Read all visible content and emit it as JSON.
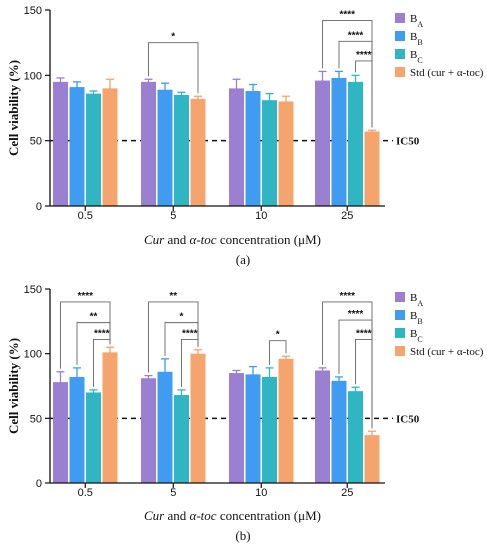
{
  "chart_data": [
    {
      "type": "bar",
      "panel_label": "(a)",
      "ylabel": "Cell viability (%)",
      "xlabel": {
        "italic1": "Cur",
        "mid": " and ",
        "italic2": "α-toc",
        "rest": " concentration (μM)"
      },
      "ylim": [
        0,
        150
      ],
      "yticks": [
        "0",
        "50",
        "100",
        "150"
      ],
      "categories": [
        "0.5",
        "5",
        "10",
        "25"
      ],
      "ic50": {
        "value": 50,
        "label": "IC50"
      },
      "series": [
        {
          "name": "BA",
          "legend_main": "B",
          "legend_sub": "A",
          "color": "#9b7fd0",
          "values": [
            95,
            95,
            90,
            96
          ],
          "errors": [
            3,
            2,
            7,
            7
          ]
        },
        {
          "name": "BB",
          "legend_main": "B",
          "legend_sub": "B",
          "color": "#3f9cf1",
          "values": [
            91,
            89,
            88,
            98
          ],
          "errors": [
            4,
            5,
            5,
            5
          ]
        },
        {
          "name": "BC",
          "legend_main": "B",
          "legend_sub": "C",
          "color": "#2fb6c2",
          "values": [
            86,
            85,
            81,
            95
          ],
          "errors": [
            2,
            2,
            5,
            5
          ]
        },
        {
          "name": "Std (cur + α-toc)",
          "legend_main": "Std (cur + α-toc)",
          "legend_sub": "",
          "color": "#f4a46c",
          "values": [
            90,
            82,
            80,
            57
          ],
          "errors": [
            7,
            2,
            4,
            1
          ]
        }
      ],
      "significance": [
        {
          "cat": 1,
          "from": 0,
          "to": 3,
          "label": "*",
          "level": 125
        },
        {
          "cat": 3,
          "from": 0,
          "to": 3,
          "label": "****",
          "level": 142
        },
        {
          "cat": 3,
          "from": 1,
          "to": 3,
          "label": "****",
          "level": 126
        },
        {
          "cat": 3,
          "from": 2,
          "to": 3,
          "label": "****",
          "level": 111
        }
      ]
    },
    {
      "type": "bar",
      "panel_label": "(b)",
      "ylabel": "Cell viability (%)",
      "xlabel": {
        "italic1": "Cur",
        "mid": " and ",
        "italic2": "α-toc",
        "rest": " concentration (μM)"
      },
      "ylim": [
        0,
        150
      ],
      "yticks": [
        "0",
        "50",
        "100",
        "150"
      ],
      "categories": [
        "0.5",
        "5",
        "10",
        "25"
      ],
      "ic50": {
        "value": 50,
        "label": "IC50"
      },
      "series": [
        {
          "name": "BA",
          "legend_main": "B",
          "legend_sub": "A",
          "color": "#9b7fd0",
          "values": [
            78,
            81,
            85,
            87
          ],
          "errors": [
            8,
            2,
            2,
            2
          ]
        },
        {
          "name": "BB",
          "legend_main": "B",
          "legend_sub": "B",
          "color": "#3f9cf1",
          "values": [
            82,
            86,
            84,
            79
          ],
          "errors": [
            7,
            10,
            6,
            3
          ]
        },
        {
          "name": "BC",
          "legend_main": "B",
          "legend_sub": "C",
          "color": "#2fb6c2",
          "values": [
            70,
            68,
            82,
            71
          ],
          "errors": [
            2,
            4,
            7,
            3
          ]
        },
        {
          "name": "Std (cur + α-toc)",
          "legend_main": "Std (cur + α-toc)",
          "legend_sub": "",
          "color": "#f4a46c",
          "values": [
            101,
            100,
            96,
            37
          ],
          "errors": [
            4,
            3,
            2,
            3
          ]
        }
      ],
      "significance": [
        {
          "cat": 0,
          "from": 0,
          "to": 3,
          "label": "****",
          "level": 140
        },
        {
          "cat": 0,
          "from": 1,
          "to": 3,
          "label": "**",
          "level": 124
        },
        {
          "cat": 0,
          "from": 2,
          "to": 3,
          "label": "****",
          "level": 111
        },
        {
          "cat": 1,
          "from": 0,
          "to": 3,
          "label": "**",
          "level": 140
        },
        {
          "cat": 1,
          "from": 1,
          "to": 3,
          "label": "*",
          "level": 124
        },
        {
          "cat": 1,
          "from": 2,
          "to": 3,
          "label": "****",
          "level": 111
        },
        {
          "cat": 2,
          "from": 2,
          "to": 3,
          "label": "*",
          "level": 110
        },
        {
          "cat": 3,
          "from": 0,
          "to": 3,
          "label": "****",
          "level": 140
        },
        {
          "cat": 3,
          "from": 1,
          "to": 3,
          "label": "****",
          "level": 126
        },
        {
          "cat": 3,
          "from": 2,
          "to": 3,
          "label": "****",
          "level": 111
        }
      ]
    }
  ]
}
